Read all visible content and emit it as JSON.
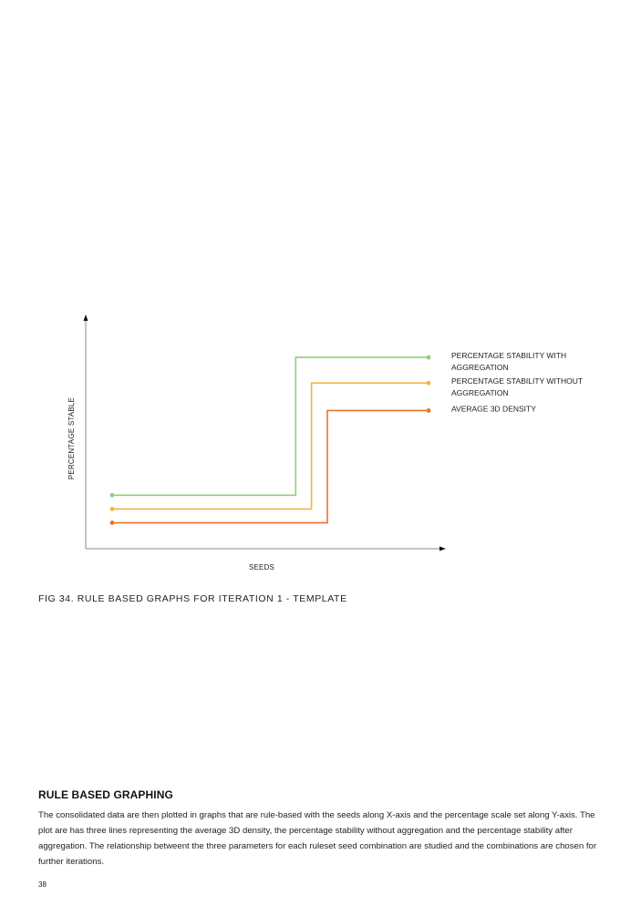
{
  "chart_data": {
    "type": "line",
    "style": "step",
    "xlabel": "SEEDS",
    "ylabel": "PERCENTAGE STABLE",
    "grid": false,
    "legend_placement": "right",
    "axis_ticks": false,
    "series": [
      {
        "name_lines": [
          "PERCENTAGE STABILITY WITH",
          "AGGREGATION"
        ],
        "color": "#8fcf7a",
        "points": [
          [
            0,
            0.23
          ],
          [
            0.58,
            0.23
          ],
          [
            0.58,
            0.93
          ],
          [
            1,
            0.93
          ]
        ]
      },
      {
        "name_lines": [
          "PERCENTAGE STABILITY WITHOUT",
          "AGGREGATION"
        ],
        "color": "#f2b53d",
        "points": [
          [
            0,
            0.16
          ],
          [
            0.63,
            0.16
          ],
          [
            0.63,
            0.8
          ],
          [
            1,
            0.8
          ]
        ]
      },
      {
        "name_lines": [
          "AVERAGE 3D DENSITY"
        ],
        "color": "#e8742e",
        "points": [
          [
            0,
            0.09
          ],
          [
            0.68,
            0.09
          ],
          [
            0.68,
            0.66
          ],
          [
            1,
            0.66
          ]
        ]
      }
    ]
  },
  "caption": "FIG 34. RULE BASED GRAPHS FOR ITERATION 1 - TEMPLATE",
  "section": {
    "heading": "RULE BASED GRAPHING",
    "body": "The consolidated data are then plotted in graphs that are rule-based with the seeds along X-axis and the percentage scale set along Y-axis. The plot are has three lines representing the average 3D density, the percentage stability without aggregation and the percentage stability after aggregation. The relationship betweent the three parameters for each ruleset seed combination are studied and the combinations are chosen for further iterations."
  },
  "page_number": "38",
  "colors": {
    "axis": "#888888",
    "text": "#222222"
  }
}
